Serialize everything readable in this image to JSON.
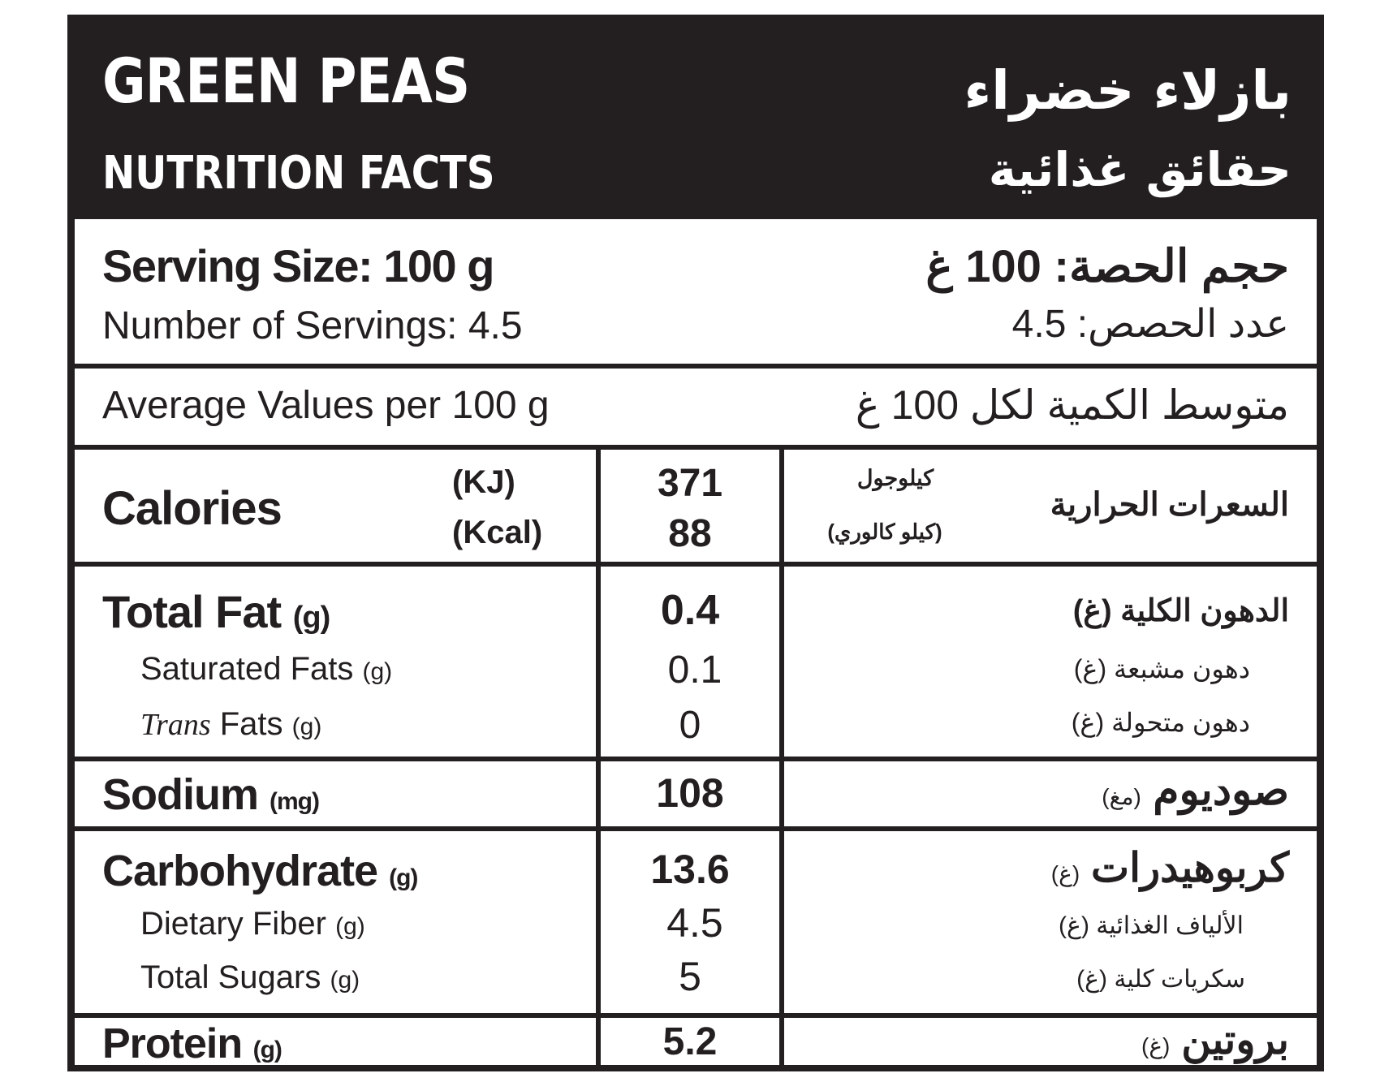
{
  "header": {
    "title_en": "GREEN PEAS",
    "subtitle_en": "NUTRITION FACTS",
    "title_ar": "بازلاء خضراء",
    "subtitle_ar": "حقائق غذائية"
  },
  "serving": {
    "size_en": "Serving Size: 100 g",
    "size_ar": "حجم الحصة: 100 غ",
    "count_en": "Number of Servings: 4.5",
    "count_ar": "عدد الحصص: 4.5"
  },
  "average": {
    "en": "Average Values per 100 g",
    "ar": "متوسط الكمية لكل 100 غ"
  },
  "calories": {
    "label_en": "Calories",
    "unit_kj": "(KJ)",
    "unit_kcal": "(Kcal)",
    "value_kj": "371",
    "value_kcal": "88",
    "unit_kj_ar": "كيلوجول",
    "unit_kcal_ar": "(كيلو كالوري)",
    "label_ar": "السعرات الحرارية"
  },
  "fat": {
    "total_en": "Total Fat",
    "total_unit": "(g)",
    "total_value": "0.4",
    "total_ar": "الدهون الكلية (غ)",
    "saturated_en": "Saturated Fats",
    "saturated_unit": "(g)",
    "saturated_value": "0.1",
    "saturated_ar": "دهون مشبعة (غ)",
    "trans_italic": "Trans",
    "trans_en": "Fats",
    "trans_unit": "(g)",
    "trans_value": "0",
    "trans_ar": "دهون متحولة (غ)"
  },
  "sodium": {
    "label_en": "Sodium",
    "unit": "(mg)",
    "value": "108",
    "label_ar": "صوديوم",
    "unit_ar": "(مغ)"
  },
  "carbs": {
    "label_en": "Carbohydrate",
    "unit": "(g)",
    "value": "13.6",
    "label_ar": "كربوهيدرات",
    "unit_ar": "(غ)",
    "fiber_en": "Dietary Fiber",
    "fiber_unit": "(g)",
    "fiber_value": "4.5",
    "fiber_ar": "الألياف الغذائية (غ)",
    "sugars_en": "Total Sugars",
    "sugars_unit": "(g)",
    "sugars_value": "5",
    "sugars_ar": "سكريات كلية (غ)"
  },
  "protein": {
    "label_en": "Protein",
    "unit": "(g)",
    "value": "5.2",
    "label_ar": "بروتين",
    "unit_ar": "(غ)"
  }
}
